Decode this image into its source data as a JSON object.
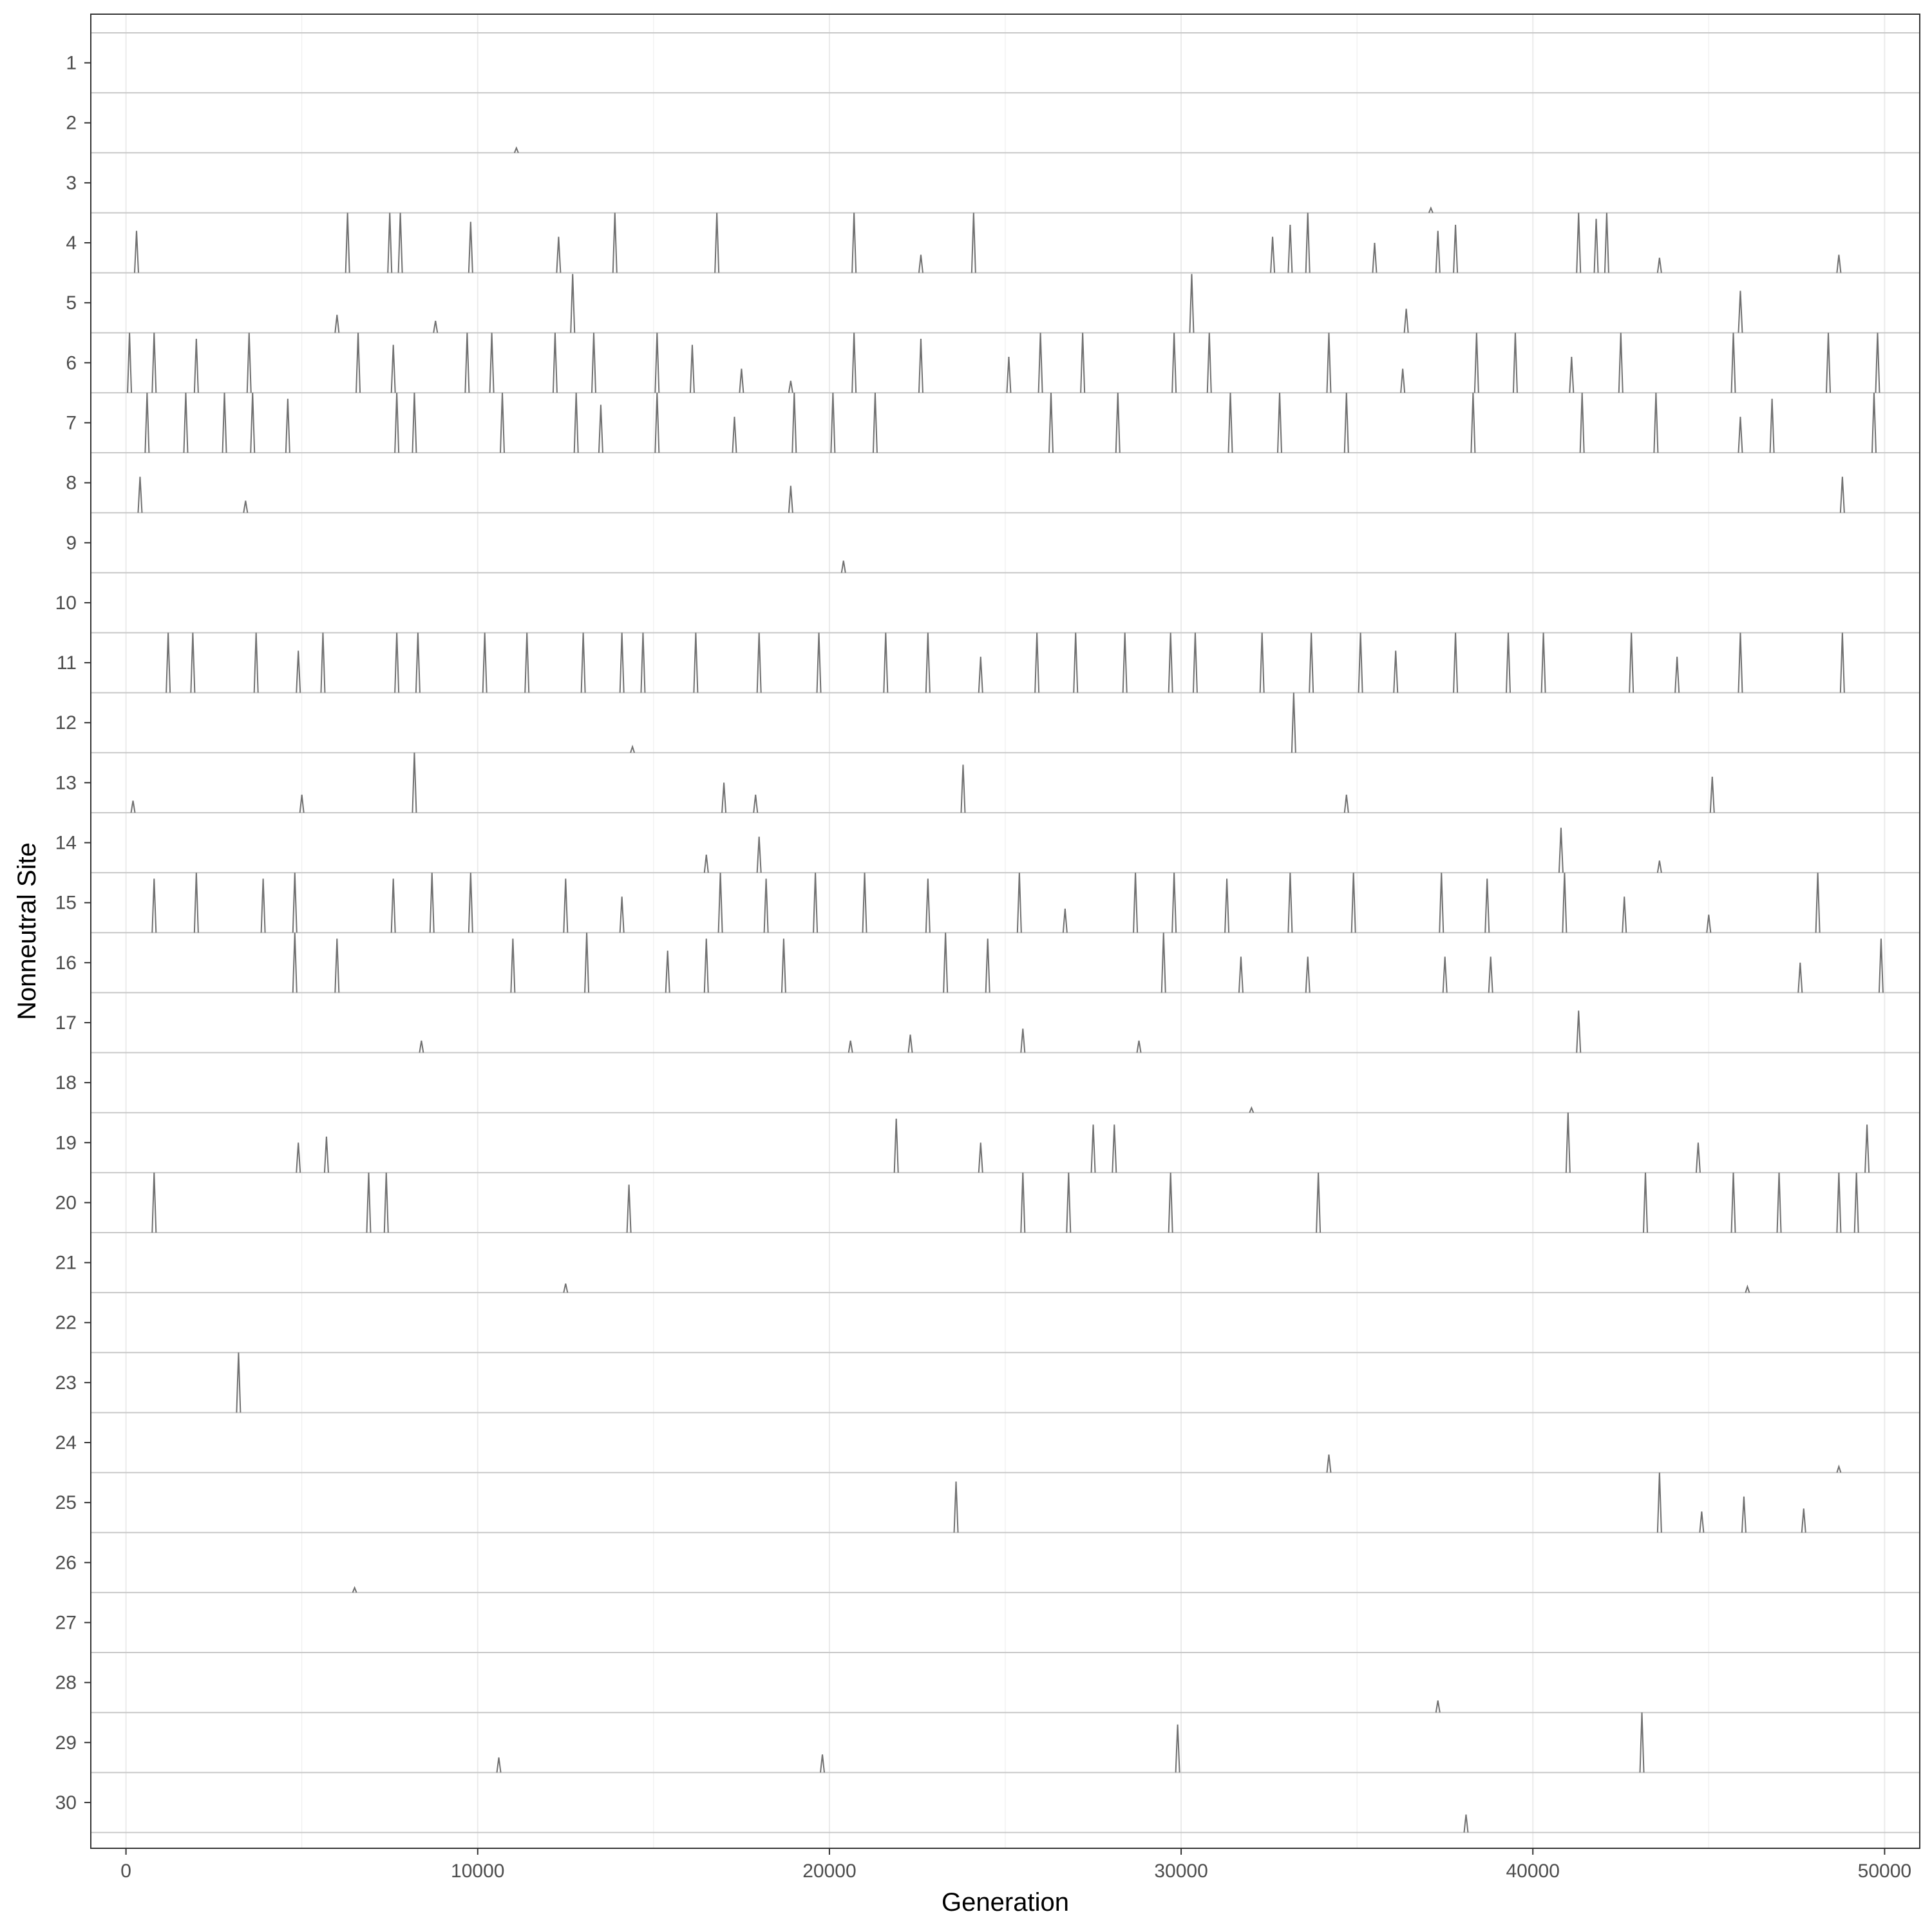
{
  "chart_data": {
    "type": "line",
    "title": "",
    "xlabel": "Generation",
    "ylabel": "Nonneutral Site",
    "xlim": [
      -1000,
      51000
    ],
    "x_ticks": [
      "0",
      "10000",
      "20000",
      "30000",
      "40000",
      "50000"
    ],
    "y_ticks": [
      "1",
      "2",
      "3",
      "4",
      "5",
      "6",
      "7",
      "8",
      "9",
      "10",
      "11",
      "12",
      "13",
      "14",
      "15",
      "16",
      "17",
      "18",
      "19",
      "20",
      "21",
      "22",
      "23",
      "24",
      "25",
      "26",
      "27",
      "28",
      "29",
      "30"
    ],
    "grid": true,
    "legend": "none",
    "line_color": "#707070",
    "baseline_color": "#c8c8c8",
    "site_frequency_peaks": [
      {
        "site": 1,
        "peaks": []
      },
      {
        "site": 2,
        "peaks": [
          [
            11100,
            0.08
          ]
        ]
      },
      {
        "site": 3,
        "peaks": [
          [
            37100,
            0.08
          ]
        ]
      },
      {
        "site": 4,
        "peaks": [
          [
            300,
            0.7
          ],
          [
            6300,
            1.0
          ],
          [
            7500,
            1.0
          ],
          [
            7800,
            1.0
          ],
          [
            9800,
            0.85
          ],
          [
            12300,
            0.6
          ],
          [
            13900,
            1.0
          ],
          [
            16800,
            1.0
          ],
          [
            20700,
            1.0
          ],
          [
            22600,
            0.3
          ],
          [
            24100,
            1.0
          ],
          [
            32600,
            0.6
          ],
          [
            33100,
            0.8
          ],
          [
            33600,
            1.0
          ],
          [
            35500,
            0.5
          ],
          [
            37300,
            0.7
          ],
          [
            37800,
            0.8
          ],
          [
            41300,
            1.0
          ],
          [
            41800,
            0.9
          ],
          [
            42100,
            1.0
          ],
          [
            43600,
            0.25
          ],
          [
            48700,
            0.3
          ]
        ]
      },
      {
        "site": 5,
        "peaks": [
          [
            12700,
            0.98
          ],
          [
            30300,
            0.98
          ],
          [
            6000,
            0.3
          ],
          [
            8800,
            0.2
          ],
          [
            36400,
            0.4
          ],
          [
            45900,
            0.7
          ]
        ]
      },
      {
        "site": 6,
        "peaks": [
          [
            100,
            1.0
          ],
          [
            800,
            1.0
          ],
          [
            2000,
            0.9
          ],
          [
            3500,
            1.0
          ],
          [
            6600,
            1.0
          ],
          [
            7600,
            0.8
          ],
          [
            9700,
            1.0
          ],
          [
            10400,
            1.0
          ],
          [
            12200,
            1.0
          ],
          [
            13300,
            1.0
          ],
          [
            15100,
            1.0
          ],
          [
            16100,
            0.8
          ],
          [
            17500,
            0.4
          ],
          [
            18900,
            0.2
          ],
          [
            20700,
            1.0
          ],
          [
            22600,
            0.9
          ],
          [
            25100,
            0.6
          ],
          [
            26000,
            1.0
          ],
          [
            27200,
            1.0
          ],
          [
            29800,
            1.0
          ],
          [
            30800,
            1.0
          ],
          [
            34200,
            1.0
          ],
          [
            36300,
            0.4
          ],
          [
            38400,
            1.0
          ],
          [
            39500,
            1.0
          ],
          [
            41100,
            0.6
          ],
          [
            42500,
            1.0
          ],
          [
            45700,
            1.0
          ],
          [
            48400,
            1.0
          ],
          [
            49800,
            1.0
          ]
        ]
      },
      {
        "site": 7,
        "peaks": [
          [
            600,
            1.0
          ],
          [
            1700,
            1.0
          ],
          [
            2800,
            1.0
          ],
          [
            3600,
            1.0
          ],
          [
            4600,
            0.9
          ],
          [
            7700,
            1.0
          ],
          [
            8200,
            1.0
          ],
          [
            10700,
            1.0
          ],
          [
            12800,
            1.0
          ],
          [
            13500,
            0.8
          ],
          [
            15100,
            1.0
          ],
          [
            17300,
            0.6
          ],
          [
            19000,
            1.0
          ],
          [
            20100,
            1.0
          ],
          [
            21300,
            1.0
          ],
          [
            26300,
            1.0
          ],
          [
            28200,
            1.0
          ],
          [
            31400,
            1.0
          ],
          [
            32800,
            1.0
          ],
          [
            34700,
            1.0
          ],
          [
            38300,
            1.0
          ],
          [
            41400,
            1.0
          ],
          [
            43500,
            1.0
          ],
          [
            45900,
            0.6
          ],
          [
            46800,
            0.9
          ],
          [
            49700,
            1.0
          ]
        ]
      },
      {
        "site": 8,
        "peaks": [
          [
            400,
            0.6
          ],
          [
            3400,
            0.2
          ],
          [
            18900,
            0.45
          ],
          [
            48800,
            0.6
          ]
        ]
      },
      {
        "site": 9,
        "peaks": [
          [
            20400,
            0.2
          ]
        ]
      },
      {
        "site": 10,
        "peaks": []
      },
      {
        "site": 11,
        "peaks": [
          [
            1200,
            1.0
          ],
          [
            1900,
            1.0
          ],
          [
            3700,
            1.0
          ],
          [
            4900,
            0.7
          ],
          [
            5600,
            1.0
          ],
          [
            7700,
            1.0
          ],
          [
            8300,
            1.0
          ],
          [
            10200,
            1.0
          ],
          [
            11400,
            1.0
          ],
          [
            13000,
            1.0
          ],
          [
            14100,
            1.0
          ],
          [
            14700,
            1.0
          ],
          [
            16200,
            1.0
          ],
          [
            18000,
            1.0
          ],
          [
            19700,
            1.0
          ],
          [
            21600,
            1.0
          ],
          [
            22800,
            1.0
          ],
          [
            24300,
            0.6
          ],
          [
            25900,
            1.0
          ],
          [
            27000,
            1.0
          ],
          [
            28400,
            1.0
          ],
          [
            29700,
            1.0
          ],
          [
            30400,
            1.0
          ],
          [
            32300,
            1.0
          ],
          [
            33700,
            1.0
          ],
          [
            35100,
            1.0
          ],
          [
            36100,
            0.7
          ],
          [
            37800,
            1.0
          ],
          [
            39300,
            1.0
          ],
          [
            40300,
            1.0
          ],
          [
            42800,
            1.0
          ],
          [
            44100,
            0.6
          ],
          [
            45900,
            1.0
          ],
          [
            48800,
            1.0
          ]
        ]
      },
      {
        "site": 12,
        "peaks": [
          [
            14400,
            0.1
          ],
          [
            33200,
            1.0
          ]
        ]
      },
      {
        "site": 13,
        "peaks": [
          [
            200,
            0.2
          ],
          [
            5000,
            0.3
          ],
          [
            8200,
            1.0
          ],
          [
            17000,
            0.5
          ],
          [
            17900,
            0.3
          ],
          [
            23800,
            0.8
          ],
          [
            34700,
            0.3
          ],
          [
            45100,
            0.6
          ]
        ]
      },
      {
        "site": 14,
        "peaks": [
          [
            16500,
            0.3
          ],
          [
            18000,
            0.6
          ],
          [
            40800,
            0.75
          ],
          [
            43600,
            0.2
          ]
        ]
      },
      {
        "site": 15,
        "peaks": [
          [
            800,
            0.9
          ],
          [
            2000,
            1.0
          ],
          [
            3900,
            0.9
          ],
          [
            4800,
            1.0
          ],
          [
            7600,
            0.9
          ],
          [
            8700,
            1.0
          ],
          [
            9800,
            1.0
          ],
          [
            12500,
            0.9
          ],
          [
            14100,
            0.6
          ],
          [
            16900,
            1.0
          ],
          [
            18200,
            0.9
          ],
          [
            19600,
            1.0
          ],
          [
            21000,
            1.0
          ],
          [
            22800,
            0.9
          ],
          [
            25400,
            1.0
          ],
          [
            26700,
            0.4
          ],
          [
            28700,
            1.0
          ],
          [
            29800,
            1.0
          ],
          [
            31300,
            0.9
          ],
          [
            33100,
            1.0
          ],
          [
            34900,
            1.0
          ],
          [
            37400,
            1.0
          ],
          [
            38700,
            0.9
          ],
          [
            40900,
            1.0
          ],
          [
            42600,
            0.6
          ],
          [
            45000,
            0.3
          ],
          [
            48100,
            1.0
          ]
        ]
      },
      {
        "site": 16,
        "peaks": [
          [
            4800,
            1.0
          ],
          [
            6000,
            0.9
          ],
          [
            11000,
            0.9
          ],
          [
            13100,
            1.0
          ],
          [
            15400,
            0.7
          ],
          [
            16500,
            0.9
          ],
          [
            18700,
            0.9
          ],
          [
            23300,
            1.0
          ],
          [
            24500,
            0.9
          ],
          [
            29500,
            1.0
          ],
          [
            31700,
            0.6
          ],
          [
            33600,
            0.6
          ],
          [
            37500,
            0.6
          ],
          [
            38800,
            0.6
          ],
          [
            47600,
            0.5
          ],
          [
            49900,
            0.9
          ]
        ]
      },
      {
        "site": 17,
        "peaks": [
          [
            8400,
            0.2
          ],
          [
            20600,
            0.2
          ],
          [
            22300,
            0.3
          ],
          [
            25500,
            0.4
          ],
          [
            28800,
            0.2
          ],
          [
            41300,
            0.7
          ]
        ]
      },
      {
        "site": 18,
        "peaks": [
          [
            32000,
            0.08
          ]
        ]
      },
      {
        "site": 19,
        "peaks": [
          [
            4900,
            0.5
          ],
          [
            5700,
            0.6
          ],
          [
            21900,
            0.9
          ],
          [
            24300,
            0.5
          ],
          [
            27500,
            0.8
          ],
          [
            28100,
            0.8
          ],
          [
            41000,
            1.0
          ],
          [
            44700,
            0.5
          ],
          [
            49500,
            0.8
          ]
        ]
      },
      {
        "site": 20,
        "peaks": [
          [
            800,
            1.0
          ],
          [
            6900,
            1.0
          ],
          [
            7400,
            1.0
          ],
          [
            14300,
            0.8
          ],
          [
            25500,
            1.0
          ],
          [
            26800,
            1.0
          ],
          [
            29700,
            1.0
          ],
          [
            33900,
            1.0
          ],
          [
            43200,
            1.0
          ],
          [
            45700,
            1.0
          ],
          [
            47000,
            1.0
          ],
          [
            48700,
            1.0
          ],
          [
            49200,
            1.0
          ]
        ]
      },
      {
        "site": 21,
        "peaks": [
          [
            12500,
            0.15
          ],
          [
            46100,
            0.1
          ]
        ]
      },
      {
        "site": 22,
        "peaks": []
      },
      {
        "site": 23,
        "peaks": [
          [
            3200,
            1.0
          ]
        ]
      },
      {
        "site": 24,
        "peaks": [
          [
            34200,
            0.3
          ],
          [
            48700,
            0.1
          ]
        ]
      },
      {
        "site": 25,
        "peaks": [
          [
            23600,
            0.85
          ],
          [
            43600,
            1.0
          ],
          [
            44800,
            0.35
          ],
          [
            46000,
            0.6
          ],
          [
            47700,
            0.4
          ]
        ]
      },
      {
        "site": 26,
        "peaks": [
          [
            6500,
            0.08
          ]
        ]
      },
      {
        "site": 27,
        "peaks": []
      },
      {
        "site": 28,
        "peaks": [
          [
            37300,
            0.2
          ]
        ]
      },
      {
        "site": 29,
        "peaks": [
          [
            10600,
            0.25
          ],
          [
            19800,
            0.3
          ],
          [
            29900,
            0.8
          ],
          [
            43100,
            1.0
          ]
        ]
      },
      {
        "site": 30,
        "peaks": [
          [
            38100,
            0.3
          ]
        ]
      }
    ]
  }
}
